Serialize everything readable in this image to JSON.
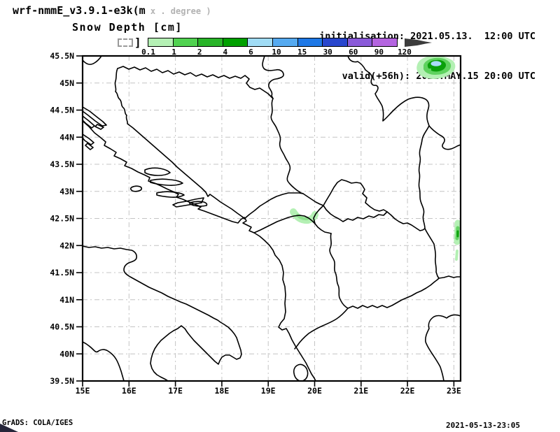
{
  "header": {
    "model": "wrf-nmmE_v3.9.1-e3k(m",
    "model_note": " x . degree )",
    "title": "Snow Depth [cm]",
    "init_line": "initialisation: 2021.05.13.  12:00 UTC",
    "valid_line": "valid(+56h): 2021.MAY.15 20:00 UTC"
  },
  "legend": {
    "units": "cm",
    "bracket": "]",
    "segments": [
      {
        "color": "#b4f0b4"
      },
      {
        "color": "#50d250"
      },
      {
        "color": "#28b428"
      },
      {
        "color": "#00a000"
      },
      {
        "color": "#a0dcf5"
      },
      {
        "color": "#55aaf0"
      },
      {
        "color": "#1e78e6"
      },
      {
        "color": "#2846cd"
      },
      {
        "color": "#8a5ad9"
      },
      {
        "color": "#b464e0"
      }
    ],
    "boundary_labels": [
      "0.1",
      "1",
      "2",
      "4",
      "6",
      "10",
      "15",
      "30",
      "60",
      "90",
      "120"
    ],
    "overflow_arrow_color": "#3c3c3c"
  },
  "map": {
    "lat_ticks": [
      {
        "label": "45.5N",
        "value": 45.5
      },
      {
        "label": "45N",
        "value": 45.0
      },
      {
        "label": "44.5N",
        "value": 44.5
      },
      {
        "label": "44N",
        "value": 44.0
      },
      {
        "label": "43.5N",
        "value": 43.5
      },
      {
        "label": "43N",
        "value": 43.0
      },
      {
        "label": "42.5N",
        "value": 42.5
      },
      {
        "label": "42N",
        "value": 42.0
      },
      {
        "label": "41.5N",
        "value": 41.5
      },
      {
        "label": "41N",
        "value": 41.0
      },
      {
        "label": "40.5N",
        "value": 40.5
      },
      {
        "label": "40N",
        "value": 40.0
      },
      {
        "label": "39.5N",
        "value": 39.5
      }
    ],
    "lon_ticks": [
      {
        "label": "15E",
        "value": 15
      },
      {
        "label": "16E",
        "value": 16
      },
      {
        "label": "17E",
        "value": 17
      },
      {
        "label": "18E",
        "value": 18
      },
      {
        "label": "19E",
        "value": 19
      },
      {
        "label": "20E",
        "value": 20
      },
      {
        "label": "21E",
        "value": 21
      },
      {
        "label": "22E",
        "value": 22
      },
      {
        "label": "23E",
        "value": 23
      }
    ],
    "snow_areas": [
      {
        "location": "northeast patch (~22.6E, 45.3N)",
        "max_bin": "6-10 cm core"
      },
      {
        "location": "border arc (~19.7E, 42.5N)",
        "max_bin": "0.1-1 cm"
      },
      {
        "location": "right edge streak (~23.1E, 42.3N)",
        "max_bin": "2-4 cm"
      }
    ],
    "colors": {
      "snow_pale": "#b4f0b4",
      "snow_mid": "#5fd25f",
      "snow_dark": "#0aa00a",
      "snow_core_blue": "#aadcfa",
      "gridline": "#c4c4c4",
      "coast": "#000000"
    }
  },
  "footer": {
    "left": "GrADS: COLA/IGES",
    "right": "2021-05-13-23:05"
  }
}
